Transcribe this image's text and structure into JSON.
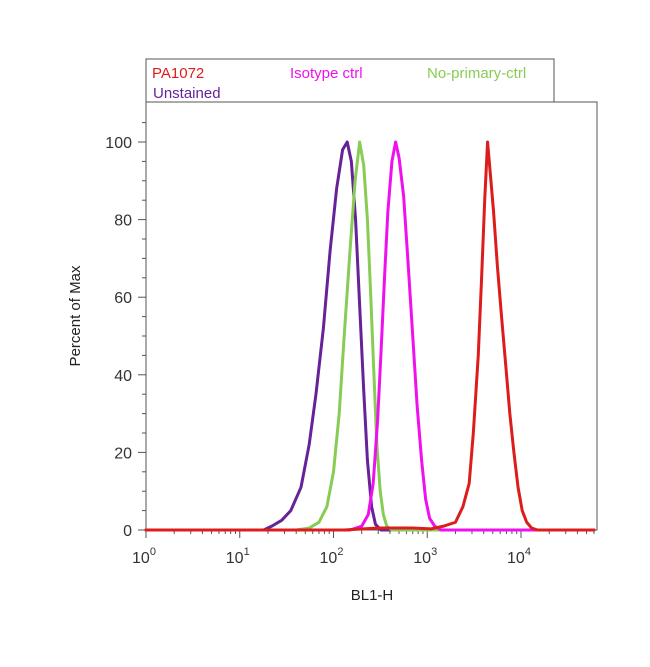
{
  "chart_data": {
    "type": "line",
    "xlabel": "BL1-H",
    "ylabel": "Percent of Max",
    "x_scale": "log",
    "xlim": [
      1,
      60000
    ],
    "ylim": [
      0,
      110
    ],
    "x_ticks": [
      {
        "value": 1,
        "base": "10",
        "exp": "0"
      },
      {
        "value": 10,
        "base": "10",
        "exp": "1"
      },
      {
        "value": 100,
        "base": "10",
        "exp": "2"
      },
      {
        "value": 1000,
        "base": "10",
        "exp": "3"
      },
      {
        "value": 10000,
        "base": "10",
        "exp": "4"
      }
    ],
    "y_ticks": [
      0,
      20,
      40,
      60,
      80,
      100
    ],
    "legend_position": "top",
    "series": [
      {
        "name": "PA1072",
        "color": "#dd1c1c",
        "points": [
          [
            1,
            0
          ],
          [
            130,
            0
          ],
          [
            300,
            0.5
          ],
          [
            700,
            0.5
          ],
          [
            1100,
            0.3
          ],
          [
            1500,
            1
          ],
          [
            2000,
            2
          ],
          [
            2400,
            6
          ],
          [
            2800,
            12
          ],
          [
            3100,
            25
          ],
          [
            3500,
            45
          ],
          [
            3800,
            65
          ],
          [
            4100,
            85
          ],
          [
            4400,
            100
          ],
          [
            4700,
            92
          ],
          [
            5100,
            82
          ],
          [
            5600,
            68
          ],
          [
            6200,
            55
          ],
          [
            6900,
            42
          ],
          [
            7600,
            30
          ],
          [
            8400,
            20
          ],
          [
            9300,
            11
          ],
          [
            10300,
            5
          ],
          [
            11500,
            2
          ],
          [
            13000,
            0.5
          ],
          [
            15000,
            0
          ],
          [
            60000,
            0
          ]
        ]
      },
      {
        "name": "Isotype ctrl",
        "color": "#ee11ee",
        "points": [
          [
            1,
            0
          ],
          [
            150,
            0
          ],
          [
            200,
            1
          ],
          [
            235,
            4
          ],
          [
            265,
            12
          ],
          [
            295,
            28
          ],
          [
            320,
            45
          ],
          [
            350,
            65
          ],
          [
            380,
            82
          ],
          [
            420,
            95
          ],
          [
            460,
            100
          ],
          [
            500,
            96
          ],
          [
            560,
            86
          ],
          [
            620,
            70
          ],
          [
            700,
            50
          ],
          [
            780,
            32
          ],
          [
            870,
            18
          ],
          [
            960,
            8
          ],
          [
            1060,
            3
          ],
          [
            1200,
            1
          ],
          [
            1400,
            0
          ],
          [
            60000,
            0
          ]
        ]
      },
      {
        "name": "No-primary-ctrl",
        "color": "#88cc55",
        "points": [
          [
            1,
            0
          ],
          [
            40,
            0
          ],
          [
            55,
            0.5
          ],
          [
            70,
            2
          ],
          [
            85,
            6
          ],
          [
            100,
            15
          ],
          [
            115,
            30
          ],
          [
            130,
            50
          ],
          [
            150,
            72
          ],
          [
            170,
            90
          ],
          [
            190,
            100
          ],
          [
            210,
            94
          ],
          [
            230,
            80
          ],
          [
            250,
            60
          ],
          [
            270,
            40
          ],
          [
            290,
            22
          ],
          [
            315,
            10
          ],
          [
            340,
            4
          ],
          [
            370,
            1
          ],
          [
            420,
            0
          ],
          [
            60000,
            0
          ]
        ]
      },
      {
        "name": "Unstained",
        "color": "#662299",
        "points": [
          [
            1,
            0
          ],
          [
            18,
            0
          ],
          [
            22,
            1
          ],
          [
            28,
            2.5
          ],
          [
            35,
            5
          ],
          [
            45,
            11
          ],
          [
            55,
            22
          ],
          [
            65,
            35
          ],
          [
            78,
            52
          ],
          [
            92,
            72
          ],
          [
            108,
            88
          ],
          [
            125,
            98
          ],
          [
            140,
            100
          ],
          [
            155,
            95
          ],
          [
            172,
            80
          ],
          [
            190,
            58
          ],
          [
            210,
            36
          ],
          [
            230,
            18
          ],
          [
            255,
            6
          ],
          [
            280,
            1.5
          ],
          [
            320,
            0
          ],
          [
            60000,
            0
          ]
        ]
      }
    ]
  },
  "legend": {
    "row1": [
      "PA1072",
      "Isotype ctrl",
      "No-primary-ctrl"
    ],
    "row2": [
      "Unstained"
    ]
  }
}
